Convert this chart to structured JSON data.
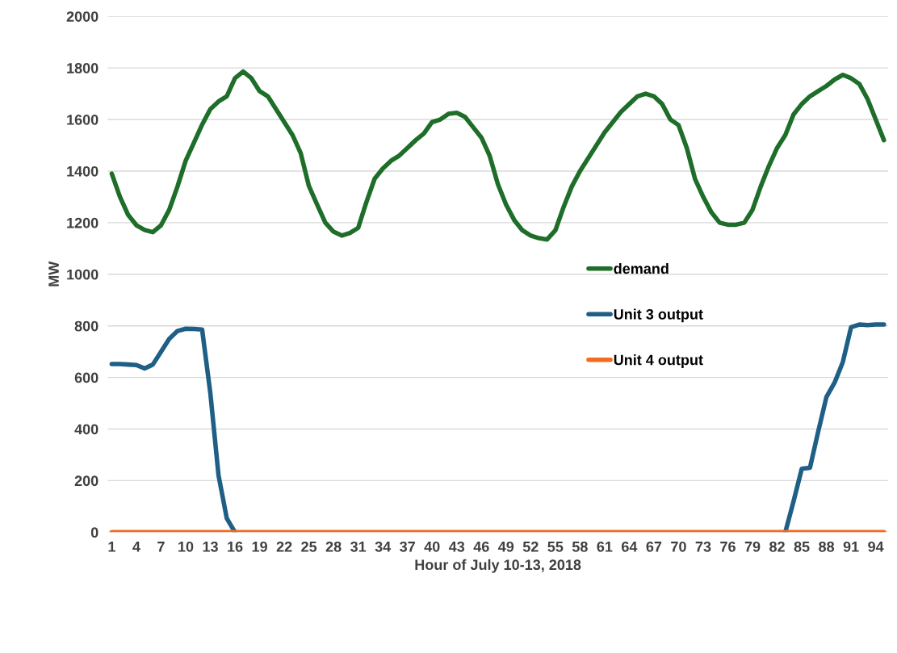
{
  "chart_data": {
    "type": "line",
    "xlabel": "Hour of July 10-13, 2018",
    "ylabel": "MW",
    "categories": [
      "1",
      null,
      null,
      "4",
      null,
      null,
      "7",
      null,
      null,
      "10",
      null,
      null,
      "13",
      null,
      null,
      "16",
      null,
      null,
      "19",
      null,
      null,
      "22",
      null,
      null,
      "25",
      null,
      null,
      "28",
      null,
      null,
      "31",
      null,
      null,
      "34",
      null,
      null,
      "37",
      null,
      null,
      "40",
      null,
      null,
      "43",
      null,
      null,
      "46",
      null,
      null,
      "49",
      null,
      null,
      "52",
      null,
      null,
      "55",
      null,
      null,
      "58",
      null,
      null,
      "61",
      null,
      null,
      "64",
      null,
      null,
      "67",
      null,
      null,
      "70",
      null,
      null,
      "73",
      null,
      null,
      "76",
      null,
      null,
      "79",
      null,
      null,
      "82",
      null,
      null,
      "85",
      null,
      null,
      "88",
      null,
      null,
      "91",
      null,
      null,
      "94",
      null
    ],
    "series": [
      {
        "name": "demand",
        "color": "#1e6e2a",
        "values": [
          1390,
          1300,
          1230,
          1190,
          1172,
          1163,
          1190,
          1250,
          1340,
          1440,
          1510,
          1580,
          1640,
          1670,
          1690,
          1760,
          1786,
          1760,
          1710,
          1690,
          1640,
          1590,
          1540,
          1470,
          1342,
          1270,
          1200,
          1165,
          1150,
          1160,
          1180,
          1280,
          1370,
          1410,
          1440,
          1460,
          1490,
          1520,
          1546,
          1590,
          1600,
          1622,
          1626,
          1610,
          1570,
          1530,
          1460,
          1350,
          1270,
          1210,
          1170,
          1150,
          1140,
          1135,
          1170,
          1260,
          1340,
          1400,
          1450,
          1500,
          1550,
          1590,
          1630,
          1660,
          1690,
          1700,
          1690,
          1660,
          1600,
          1578,
          1490,
          1370,
          1300,
          1240,
          1200,
          1192,
          1192,
          1200,
          1250,
          1340,
          1420,
          1490,
          1540,
          1620,
          1660,
          1690,
          1710,
          1730,
          1755,
          1773,
          1760,
          1738,
          1680,
          1600,
          1520
        ]
      },
      {
        "name": "Unit 3 output",
        "color": "#1f5f86",
        "values": [
          652,
          652,
          650,
          648,
          635,
          650,
          700,
          750,
          780,
          789,
          788,
          786,
          540,
          220,
          54,
          0,
          null,
          null,
          null,
          null,
          null,
          null,
          null,
          null,
          null,
          null,
          null,
          null,
          null,
          null,
          null,
          null,
          null,
          null,
          null,
          null,
          null,
          null,
          null,
          null,
          null,
          null,
          null,
          null,
          null,
          null,
          null,
          null,
          null,
          null,
          null,
          null,
          null,
          null,
          null,
          null,
          null,
          null,
          null,
          null,
          null,
          null,
          null,
          null,
          null,
          null,
          null,
          null,
          null,
          null,
          null,
          null,
          null,
          null,
          null,
          null,
          null,
          null,
          null,
          null,
          null,
          null,
          0,
          120,
          246,
          250,
          390,
          524,
          580,
          660,
          795,
          805,
          803,
          805,
          805
        ]
      },
      {
        "name": "Unit 4 output",
        "color": "#f26b21",
        "values": [
          0,
          0,
          0,
          0,
          0,
          0,
          0,
          0,
          0,
          0,
          0,
          0,
          0,
          0,
          0,
          0,
          0,
          0,
          0,
          0,
          0,
          0,
          0,
          0,
          0,
          0,
          0,
          0,
          0,
          0,
          0,
          0,
          0,
          0,
          0,
          0,
          0,
          0,
          0,
          0,
          0,
          0,
          0,
          0,
          0,
          0,
          0,
          0,
          0,
          0,
          0,
          0,
          0,
          0,
          0,
          0,
          0,
          0,
          0,
          0,
          0,
          0,
          0,
          0,
          0,
          0,
          0,
          0,
          0,
          0,
          0,
          0,
          0,
          0,
          0,
          0,
          0,
          0,
          0,
          0,
          0,
          0,
          0,
          0,
          0,
          0,
          0,
          0,
          0,
          0,
          0,
          0,
          0,
          0,
          0
        ]
      }
    ],
    "ylim": [
      0,
      2000
    ],
    "yticks": [
      0,
      200,
      400,
      600,
      800,
      1000,
      1200,
      1400,
      1600,
      1800,
      2000
    ],
    "grid": "y",
    "legend": "right",
    "marker": "none",
    "line_style": "solid"
  }
}
